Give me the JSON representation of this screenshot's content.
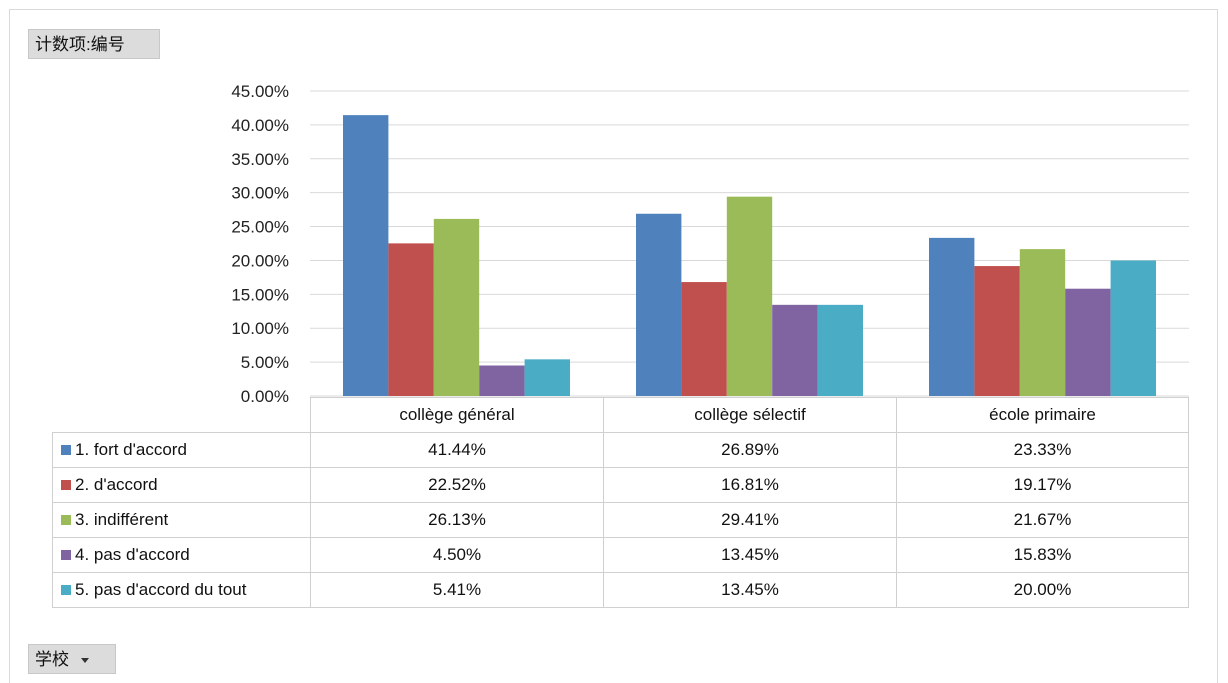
{
  "value_field": {
    "label": "计数项:编号"
  },
  "axis_field": {
    "label": "学校"
  },
  "colors": {
    "series": [
      "#4f81bd",
      "#c0504d",
      "#9bbb59",
      "#8064a2",
      "#4bacc6"
    ],
    "grid": "#d9d9d9"
  },
  "chart_data": {
    "type": "bar",
    "categories": [
      "collège général",
      "collège sélectif",
      "école primaire"
    ],
    "series": [
      {
        "name": "1. fort d'accord",
        "values": [
          41.44,
          26.89,
          23.33
        ],
        "labels": [
          "41.44%",
          "26.89%",
          "23.33%"
        ]
      },
      {
        "name": "2. d'accord",
        "values": [
          22.52,
          16.81,
          19.17
        ],
        "labels": [
          "22.52%",
          "16.81%",
          "19.17%"
        ]
      },
      {
        "name": "3. indifférent",
        "values": [
          26.13,
          29.41,
          21.67
        ],
        "labels": [
          "26.13%",
          "29.41%",
          "21.67%"
        ]
      },
      {
        "name": "4. pas d'accord",
        "values": [
          4.5,
          13.45,
          15.83
        ],
        "labels": [
          "4.50%",
          "13.45%",
          "15.83%"
        ]
      },
      {
        "name": "5. pas d'accord du tout",
        "values": [
          5.41,
          13.45,
          20.0
        ],
        "labels": [
          "5.41%",
          "13.45%",
          "20.00%"
        ]
      }
    ],
    "ylim": [
      0,
      45
    ],
    "yticks": [
      0,
      5,
      10,
      15,
      20,
      25,
      30,
      35,
      40,
      45
    ],
    "ytick_labels": [
      "0.00%",
      "5.00%",
      "10.00%",
      "15.00%",
      "20.00%",
      "25.00%",
      "30.00%",
      "35.00%",
      "40.00%",
      "45.00%"
    ],
    "grid": true,
    "legend": "data-table"
  }
}
